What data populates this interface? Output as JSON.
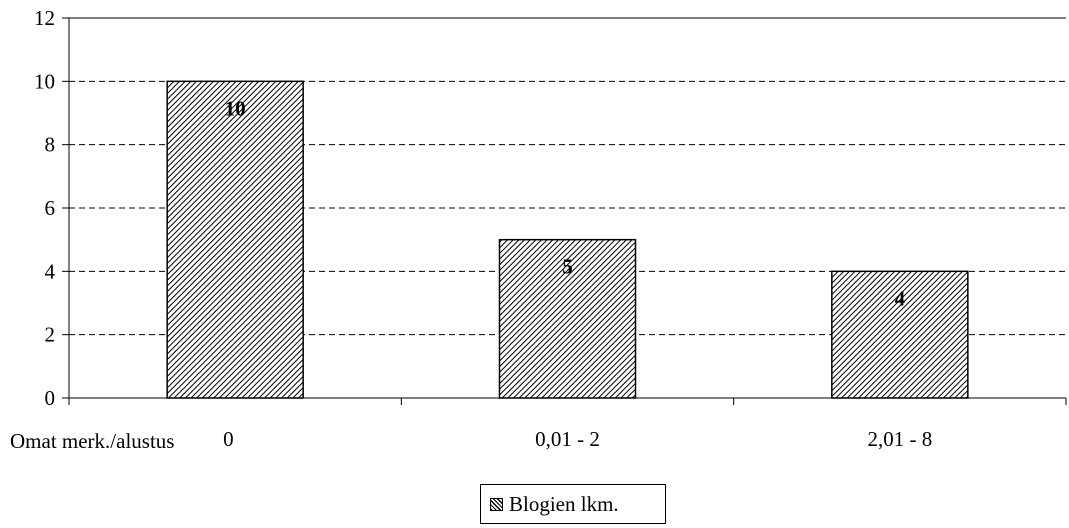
{
  "chart_data": {
    "type": "bar",
    "categories": [
      "0",
      "0,01 - 2",
      "2,01 - 8"
    ],
    "series": [
      {
        "name": "Blogien lkm.",
        "values": [
          10,
          5,
          4
        ]
      }
    ],
    "data_labels": [
      "10",
      "5",
      "4"
    ],
    "xlabel": "Omat merk./alustus",
    "ylabel": "",
    "ylim": [
      0,
      12
    ],
    "yticks": [
      "0",
      "2",
      "4",
      "6",
      "8",
      "10",
      "12"
    ],
    "grid": "dashed horizontal",
    "legend_position": "bottom",
    "bar_fill": "diagonal hatch",
    "colors": {
      "hatch": "#000000",
      "background": "#ffffff",
      "grid": "#000000"
    }
  }
}
